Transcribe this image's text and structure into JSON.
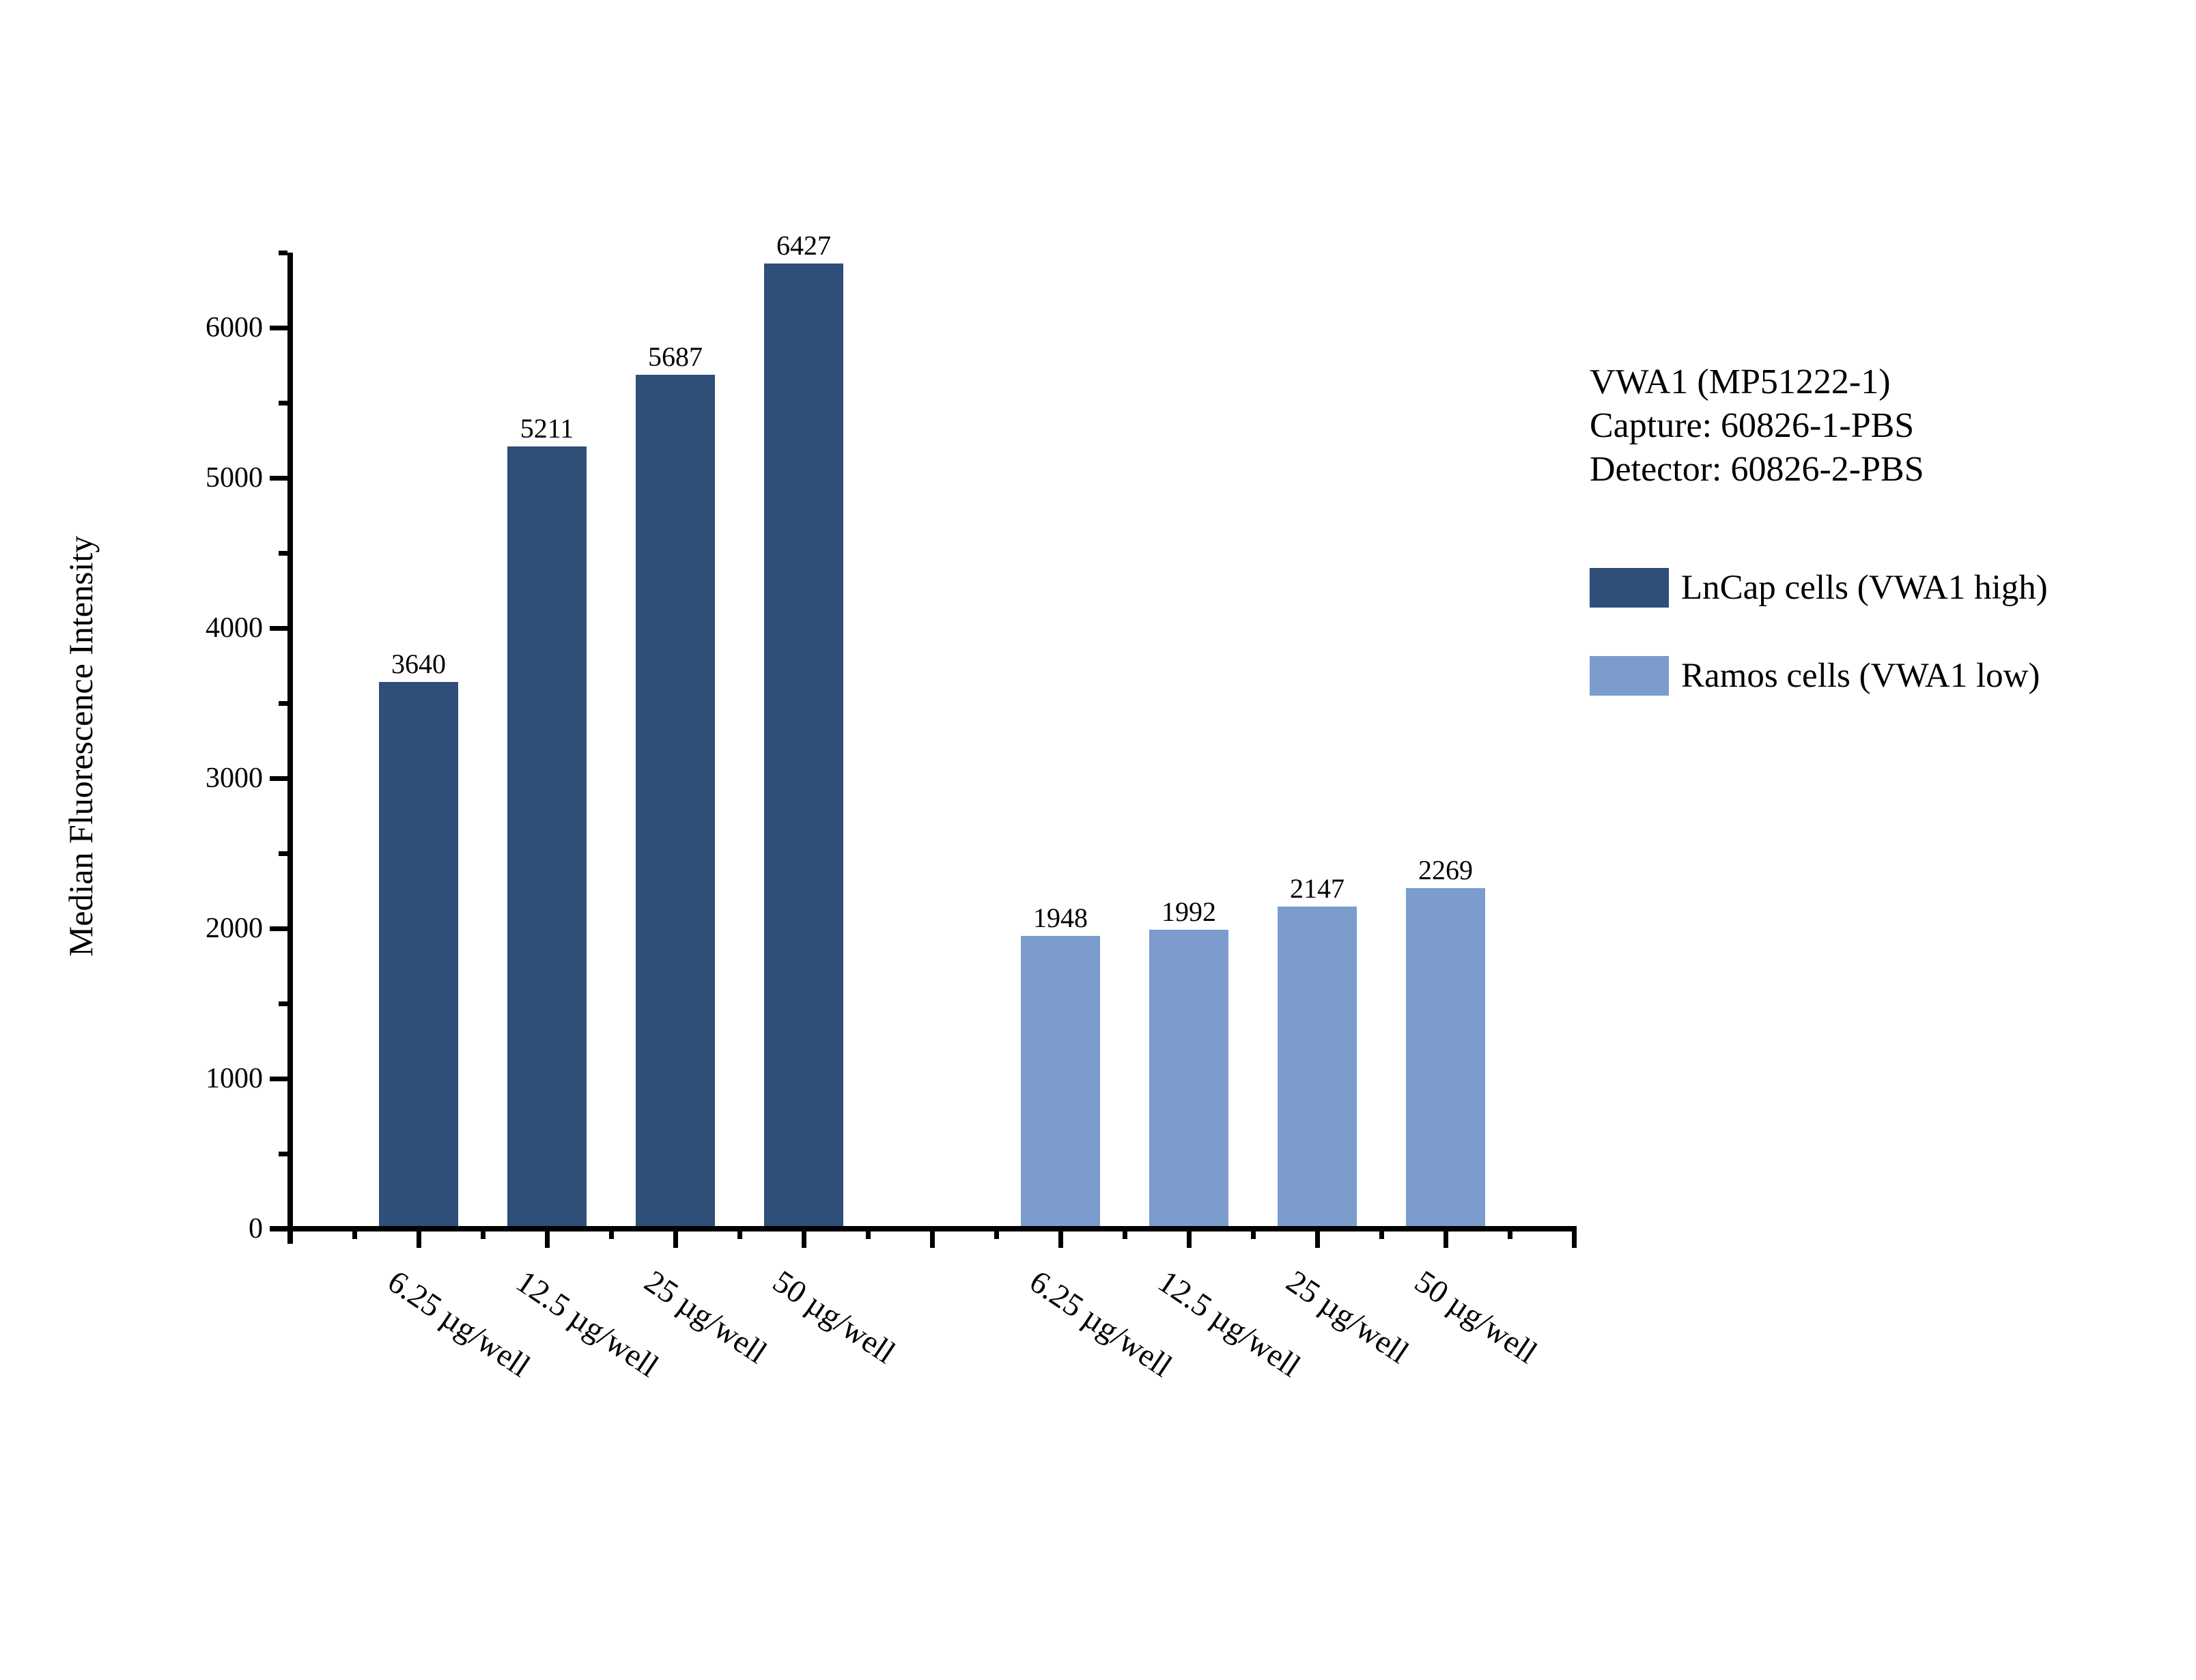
{
  "chart_data": {
    "type": "bar",
    "ylabel": "Median Fluorescence Intensity",
    "xlabel": "",
    "ylim": [
      0,
      6500
    ],
    "ytick_major_interval": 1000,
    "ytick_minor_interval": 500,
    "ytick_labels": [
      "0",
      "1000",
      "2000",
      "3000",
      "4000",
      "5000",
      "6000"
    ],
    "grid": false,
    "legend_position": "right",
    "bar_value_labels_shown": true,
    "categories": [
      "6.25 µg/well",
      "12.5 µg/well",
      "25 µg/well",
      "50 µg/well"
    ],
    "series": [
      {
        "name": "LnCap cells (VWA1 high)",
        "color": "#2F4E78",
        "values": [
          3640,
          5211,
          5687,
          6427
        ]
      },
      {
        "name": "Ramos cells (VWA1 low)",
        "color": "#7B9CCD",
        "values": [
          1948,
          1992,
          2147,
          2269
        ]
      }
    ],
    "annotation_lines": [
      "VWA1 (MP51222-1)",
      "Capture: 60826-1-PBS",
      "Detector: 60826-2-PBS"
    ]
  },
  "colors": {
    "background": "#FFFFFF",
    "axis": "#000000",
    "text": "#000000"
  }
}
